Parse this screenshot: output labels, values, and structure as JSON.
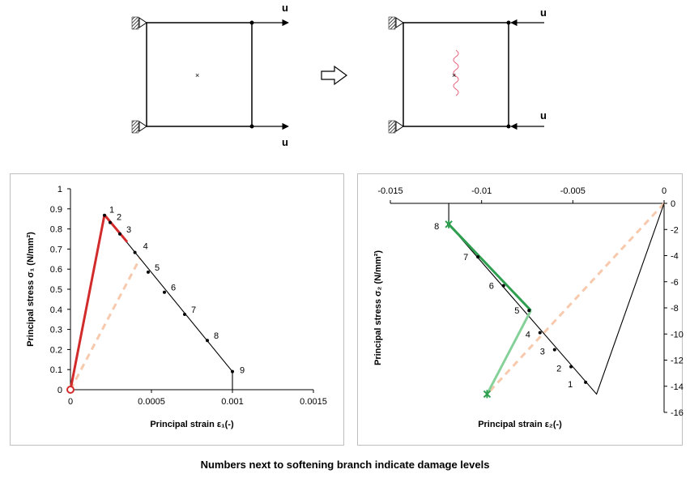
{
  "diagram": {
    "load_label": "u",
    "left_specimen": {
      "loads": [
        "u",
        "u"
      ],
      "load_direction": "tension",
      "marker": "×"
    },
    "right_specimen": {
      "loads": [
        "u",
        "u"
      ],
      "load_direction": "compression",
      "marker": "×",
      "crack": "wavy crack"
    },
    "transition": "hollow arrow",
    "colors": {
      "outline": "#000000",
      "crack": "#e8607a"
    }
  },
  "caption": "Numbers next to softening branch indicate damage levels",
  "chart_data": [
    {
      "type": "line",
      "xlabel": "Principal strain ε₁(-)",
      "ylabel": "Principal stress σ₁ (N/mm²)",
      "xlim": [
        0,
        0.0015
      ],
      "ylim": [
        0,
        1
      ],
      "x_ticks": [
        "0",
        "0.0005",
        "0.001",
        "0.0015"
      ],
      "y_ticks": [
        "0",
        "0.1",
        "0.2",
        "0.3",
        "0.4",
        "0.5",
        "0.6",
        "0.7",
        "0.8",
        "0.9",
        "1"
      ],
      "colors": {
        "envelope": "#000000",
        "loading_path": "#d22b2b",
        "unloading_path": "#f7c9ad"
      },
      "envelope": {
        "x": [
          0,
          0.00021,
          0.001,
          0.001
        ],
        "y": [
          0,
          0.87,
          0.09,
          0
        ]
      },
      "loading_path": {
        "segments": [
          {
            "x": [
              0,
              0.00021
            ],
            "y": [
              0,
              0.87
            ]
          },
          {
            "x": [
              0.00021,
              0.00035
            ],
            "y": [
              0.87,
              0.735
            ]
          }
        ]
      },
      "unloading_path": {
        "x": [
          0,
          0.00043
        ],
        "y": [
          0,
          0.655
        ]
      },
      "damage_levels": [
        {
          "label": "1",
          "x": 0.00021,
          "y": 0.868
        },
        {
          "label": "2",
          "x": 0.000245,
          "y": 0.832
        },
        {
          "label": "3",
          "x": 0.000305,
          "y": 0.775
        },
        {
          "label": "4",
          "x": 0.000398,
          "y": 0.683
        },
        {
          "label": "5",
          "x": 0.00048,
          "y": 0.585
        },
        {
          "label": "6",
          "x": 0.00058,
          "y": 0.485
        },
        {
          "label": "7",
          "x": 0.000705,
          "y": 0.375
        },
        {
          "label": "8",
          "x": 0.000845,
          "y": 0.245
        },
        {
          "label": "9",
          "x": 0.001,
          "y": 0.09
        }
      ],
      "origin_marker": {
        "x": 0,
        "y": 0
      }
    },
    {
      "type": "line",
      "xlabel": "Principal strain ε₂(-)",
      "ylabel": "Principal stress σ₂ (N/mm²)",
      "xlim": [
        -0.015,
        0
      ],
      "ylim": [
        -16,
        0
      ],
      "x_ticks": [
        "-0.015",
        "-0.01",
        "-0.005",
        "0"
      ],
      "y_ticks": [
        "0",
        "-2",
        "-4",
        "-6",
        "-8",
        "-10",
        "-12",
        "-14",
        "-16"
      ],
      "colors": {
        "envelope": "#000000",
        "loading_path": "#2e9e4f",
        "unloading_path": "#f7c9ad",
        "reload": "#86d19a"
      },
      "envelope": {
        "x": [
          0,
          -0.0037,
          -0.0118,
          -0.0118
        ],
        "y": [
          0,
          -14.6,
          -1.6,
          0
        ]
      },
      "loading_path": {
        "x": [
          -0.0118,
          -0.0073
        ],
        "y": [
          -1.6,
          -8.2
        ]
      },
      "reload_path": {
        "x": [
          -0.0073,
          -0.0097
        ],
        "y": [
          -8.2,
          -14.6
        ]
      },
      "unloading_path": {
        "x": [
          0,
          -0.0097
        ],
        "y": [
          0,
          -14.6
        ]
      },
      "damage_levels": [
        {
          "label": "1",
          "x": -0.0043,
          "y": -13.7
        },
        {
          "label": "2",
          "x": -0.0051,
          "y": -12.5
        },
        {
          "label": "3",
          "x": -0.006,
          "y": -11.2
        },
        {
          "label": "4",
          "x": -0.0068,
          "y": -9.9
        },
        {
          "label": "5",
          "x": -0.0074,
          "y": -8.2
        },
        {
          "label": "6",
          "x": -0.0088,
          "y": -6.3
        },
        {
          "label": "7",
          "x": -0.0102,
          "y": -4.1
        },
        {
          "label": "8",
          "x": -0.0118,
          "y": -1.6
        }
      ],
      "end_markers": [
        {
          "x": -0.0118,
          "y": -1.6
        },
        {
          "x": -0.0097,
          "y": -14.6
        }
      ]
    }
  ]
}
